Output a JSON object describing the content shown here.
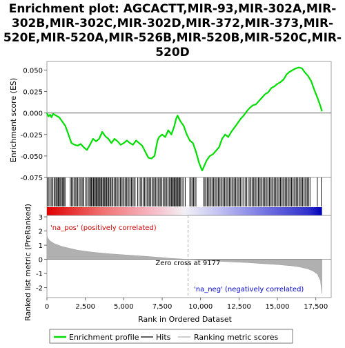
{
  "chart_data": {
    "type": "line",
    "title": "Enrichment plot: AGCACTT,MIR-93,MIR-302A,MIR-302B,MIR-302C,MIR-302D,MIR-372,MIR-373,MIR-520E,MIR-520A,MIR-526B,MIR-520B,MIR-520C,MIR-520D",
    "title_lines": [
      "Enrichment plot: AGCACTT,MIR-93,MIR-302A,MIR-",
      "302B,MIR-302C,MIR-302D,MIR-372,MIR-373,MIR-",
      "520E,MIR-520A,MIR-526B,MIR-520B,MIR-520C,MIR-",
      "520D"
    ],
    "xlabel": "Rank in Ordered Dataset",
    "xlim": [
      0,
      18500
    ],
    "x_ticks": [
      0,
      2500,
      5000,
      7500,
      10000,
      12500,
      15000,
      17500
    ],
    "x_tick_labels": [
      "0",
      "2,500",
      "5,000",
      "7,500",
      "10,000",
      "12,500",
      "15,000",
      "17,500"
    ],
    "es_panel": {
      "ylabel": "Enrichment score (ES)",
      "ylim": [
        -0.075,
        0.06
      ],
      "y_ticks": [
        0.05,
        0.025,
        0.0,
        -0.025,
        -0.05,
        -0.075
      ],
      "y_tick_labels": [
        "0.050",
        "0.025",
        "0.000",
        "-0.025",
        "-0.050",
        "-0.075"
      ],
      "line_color": "#00dd00",
      "series": [
        {
          "x": [
            0,
            100,
            200,
            300,
            400,
            500,
            600,
            800,
            1000,
            1200,
            1400,
            1600,
            1800,
            2000,
            2200,
            2400,
            2600,
            2800,
            3000,
            3200,
            3400,
            3600,
            3800,
            4000,
            4200,
            4400,
            4600,
            4800,
            5000,
            5200,
            5400,
            5600,
            5800,
            6000,
            6200,
            6400,
            6600,
            6800,
            7000,
            7200,
            7300,
            7500,
            7700,
            7900,
            8100,
            8300,
            8400,
            8500,
            8700,
            8900,
            9100,
            9300,
            9500,
            9700,
            9900,
            10100,
            10200,
            10400,
            10600,
            10800,
            11000,
            11200,
            11400,
            11600,
            11800,
            12000,
            12200,
            12400,
            12600,
            12800,
            13000,
            13200,
            13400,
            13600,
            13800,
            14000,
            14200,
            14400,
            14600,
            14800,
            15000,
            15200,
            15400,
            15600,
            15800,
            16000,
            16200,
            16400,
            16600,
            16800,
            17000,
            17200,
            17400,
            17600,
            17800,
            17900
          ],
          "y": [
            0.0,
            -0.004,
            -0.002,
            -0.005,
            -0.001,
            -0.002,
            -0.003,
            -0.005,
            -0.01,
            -0.015,
            -0.025,
            -0.035,
            -0.037,
            -0.038,
            -0.036,
            -0.04,
            -0.043,
            -0.037,
            -0.03,
            -0.033,
            -0.03,
            -0.022,
            -0.027,
            -0.03,
            -0.035,
            -0.03,
            -0.033,
            -0.037,
            -0.035,
            -0.032,
            -0.035,
            -0.037,
            -0.032,
            -0.035,
            -0.038,
            -0.045,
            -0.052,
            -0.053,
            -0.05,
            -0.032,
            -0.028,
            -0.025,
            -0.028,
            -0.02,
            -0.025,
            -0.015,
            -0.007,
            -0.003,
            -0.01,
            -0.015,
            -0.025,
            -0.032,
            -0.035,
            -0.045,
            -0.058,
            -0.067,
            -0.063,
            -0.055,
            -0.05,
            -0.048,
            -0.044,
            -0.04,
            -0.03,
            -0.025,
            -0.028,
            -0.022,
            -0.017,
            -0.012,
            -0.007,
            -0.003,
            0.002,
            0.006,
            0.009,
            0.01,
            0.014,
            0.018,
            0.022,
            0.024,
            0.029,
            0.031,
            0.034,
            0.036,
            0.039,
            0.045,
            0.048,
            0.05,
            0.052,
            0.053,
            0.052,
            0.047,
            0.043,
            0.037,
            0.027,
            0.018,
            0.008,
            0.002
          ]
        }
      ]
    },
    "hits_panel": {
      "hit_ranks": [
        40,
        130,
        220,
        310,
        390,
        470,
        540,
        610,
        680,
        740,
        800,
        860,
        930,
        1000,
        1060,
        1120,
        1180,
        1520,
        1600,
        1680,
        1760,
        1840,
        1900,
        2000,
        2080,
        2160,
        2250,
        2330,
        2400,
        2520,
        2600,
        2700,
        2780,
        2840,
        2900,
        2960,
        3030,
        3090,
        3150,
        3210,
        3270,
        3330,
        3390,
        3450,
        3510,
        3570,
        3640,
        3700,
        3760,
        3820,
        3880,
        3950,
        4020,
        4090,
        4160,
        4230,
        4300,
        4380,
        4460,
        4540,
        4620,
        4700,
        4780,
        4860,
        4940,
        5020,
        5100,
        5180,
        5260,
        5340,
        5420,
        5500,
        5580,
        5660,
        5740,
        5900,
        6000,
        6100,
        6180,
        6260,
        6350,
        6440,
        6520,
        6600,
        6680,
        6760,
        6840,
        6920,
        7000,
        7080,
        7160,
        7240,
        7320,
        7400,
        7480,
        7560,
        7640,
        7720,
        7800,
        7880,
        7960,
        8040,
        8100,
        8160,
        8220,
        8280,
        8340,
        8400,
        8460,
        8520,
        8580,
        8640,
        8700,
        8800,
        8900,
        9000,
        9300,
        9380,
        9460,
        9540,
        9620,
        9700,
        10200,
        10280,
        10360,
        10440,
        10520,
        10600,
        10680,
        10760,
        10840,
        10920,
        11000,
        11080,
        11160,
        11240,
        11320,
        11400,
        11480,
        11560,
        11640,
        11720,
        11800,
        11880,
        11960,
        12040,
        12120,
        12200,
        12280,
        12360,
        12440,
        12520,
        12600,
        12700,
        12800,
        12900,
        13000,
        13100,
        13200,
        13280,
        13360,
        13440,
        13520,
        13600,
        13680,
        13760,
        13840,
        13920,
        14000,
        14080,
        14160,
        14240,
        14320,
        14400,
        14480,
        14560,
        14640,
        14720,
        14800,
        14880,
        14960,
        15040,
        15120,
        15200,
        15280,
        15360,
        15440,
        15520,
        15600,
        15680,
        15760,
        15840,
        15920,
        16000,
        16080,
        16160,
        16240,
        16320,
        16400,
        16480,
        16560,
        16640,
        16720,
        16800,
        16880,
        16960,
        17040,
        17120,
        17600,
        17850
      ]
    },
    "ranked_metric_panel": {
      "ylabel": "Ranked list metric (PreRanked)",
      "ylim": [
        -2.7,
        3.1
      ],
      "y_ticks": [
        3,
        2,
        1,
        0,
        -1,
        -2
      ],
      "y_tick_labels": [
        "3",
        "2",
        "1",
        "0",
        "-1",
        "-2"
      ],
      "fill_color": "#b0b0b0",
      "metric_curve": {
        "x": [
          0,
          50,
          200,
          500,
          1000,
          2000,
          3000,
          4000,
          5000,
          6000,
          7000,
          8000,
          9177,
          10000,
          11000,
          12000,
          13000,
          14000,
          15000,
          16000,
          16500,
          17000,
          17300,
          17600,
          17800,
          17900
        ],
        "y": [
          1.7,
          1.5,
          1.3,
          1.1,
          0.9,
          0.65,
          0.5,
          0.4,
          0.32,
          0.25,
          0.17,
          0.08,
          0.0,
          -0.07,
          -0.12,
          -0.18,
          -0.23,
          -0.3,
          -0.37,
          -0.47,
          -0.55,
          -0.68,
          -0.82,
          -1.05,
          -1.5,
          -2.4
        ]
      },
      "zero_cross_rank": 9177,
      "annotations": {
        "pos": "'na_pos' (positively correlated)",
        "neg": "'na_neg' (negatively correlated)",
        "zero_cross": "Zero cross at 9177"
      },
      "pos_color": "#cc0000",
      "neg_color": "#0000cc"
    },
    "legend": {
      "placement": "bottom",
      "entries": [
        {
          "label": "Enrichment profile",
          "color": "#00dd00"
        },
        {
          "label": "Hits",
          "color": "#000000"
        },
        {
          "label": "Ranking metric scores",
          "color": "#b0b0b0"
        }
      ]
    },
    "grid": false
  }
}
